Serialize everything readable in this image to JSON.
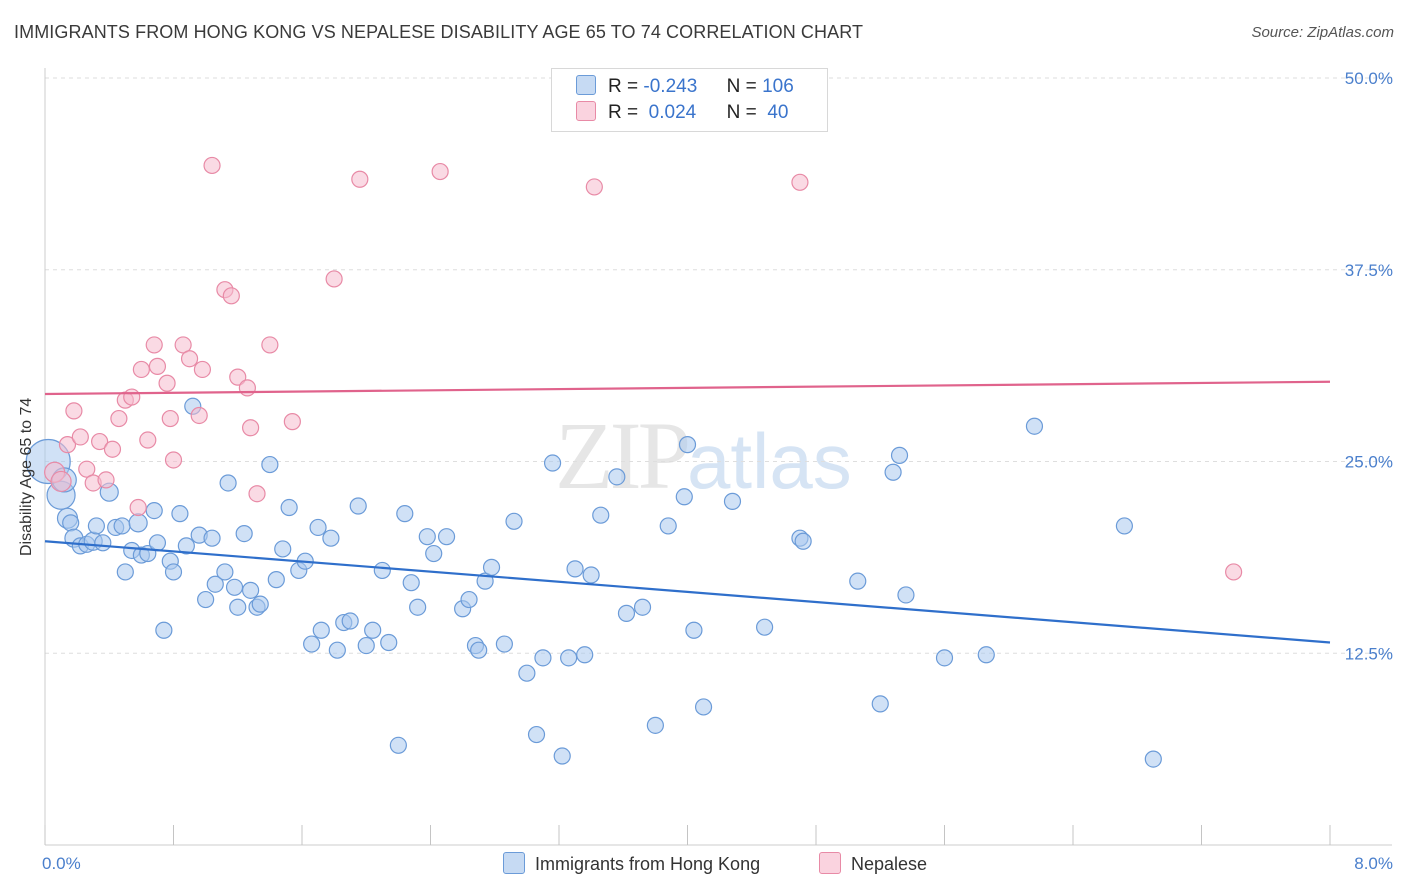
{
  "title": "IMMIGRANTS FROM HONG KONG VS NEPALESE DISABILITY AGE 65 TO 74 CORRELATION CHART",
  "source": "Source: ZipAtlas.com",
  "watermark": {
    "zip": "ZIP",
    "atlas": "atlas"
  },
  "legend": {
    "rows": [
      {
        "r_label": "R =",
        "r_value": "-0.243",
        "n_label": "N =",
        "n_value": "106"
      },
      {
        "r_label": "R =",
        "r_value": "0.024",
        "n_label": "N =",
        "n_value": "40"
      }
    ]
  },
  "colors": {
    "blue_fill": "#a9c8ee",
    "blue_stroke": "#6b9bd8",
    "blue_line": "#2f6fcb",
    "pink_fill": "#f6bccd",
    "pink_stroke": "#e88aa6",
    "pink_line": "#e0638c",
    "tick_text": "#4a7fcc",
    "grid": "#dedede"
  },
  "chart_data": {
    "type": "scatter",
    "title": "IMMIGRANTS FROM HONG KONG VS NEPALESE DISABILITY AGE 65 TO 74 CORRELATION CHART",
    "xlabel": "",
    "ylabel": "Disability Age 65 to 74",
    "xlim": [
      0,
      8
    ],
    "ylim": [
      0,
      50
    ],
    "x_tick_labels": [
      "0.0%",
      "8.0%"
    ],
    "y_ticks": [
      12.5,
      25.0,
      37.5,
      50.0
    ],
    "y_tick_labels": [
      "12.5%",
      "25.0%",
      "37.5%",
      "50.0%"
    ],
    "grid": true,
    "legend_placement": "bottom",
    "series": [
      {
        "name": "Immigrants from Hong Kong",
        "r": -0.243,
        "n": 106,
        "trend": {
          "x": [
            0,
            8
          ],
          "y": [
            19.8,
            13.2
          ]
        },
        "points": [
          [
            0.02,
            25.0,
            22
          ],
          [
            0.1,
            22.8,
            14
          ],
          [
            0.12,
            23.8,
            12
          ],
          [
            0.14,
            21.3,
            10
          ],
          [
            0.16,
            21.0,
            8
          ],
          [
            0.18,
            20.0,
            9
          ],
          [
            0.22,
            19.5,
            8
          ],
          [
            0.26,
            19.6,
            8
          ],
          [
            0.3,
            19.8,
            9
          ],
          [
            0.32,
            20.8,
            8
          ],
          [
            0.36,
            19.7,
            8
          ],
          [
            0.4,
            23.0,
            9
          ],
          [
            0.44,
            20.7,
            8
          ],
          [
            0.48,
            20.8,
            8
          ],
          [
            0.5,
            17.8,
            8
          ],
          [
            0.54,
            19.2,
            8
          ],
          [
            0.58,
            21.0,
            9
          ],
          [
            0.6,
            18.9,
            8
          ],
          [
            0.64,
            19.0,
            8
          ],
          [
            0.68,
            21.8,
            8
          ],
          [
            0.7,
            19.7,
            8
          ],
          [
            0.74,
            14.0,
            8
          ],
          [
            0.78,
            18.5,
            8
          ],
          [
            0.8,
            17.8,
            8
          ],
          [
            0.84,
            21.6,
            8
          ],
          [
            0.88,
            19.5,
            8
          ],
          [
            0.92,
            28.6,
            8
          ],
          [
            0.96,
            20.2,
            8
          ],
          [
            1.0,
            16.0,
            8
          ],
          [
            1.04,
            20.0,
            8
          ],
          [
            1.06,
            17.0,
            8
          ],
          [
            1.12,
            17.8,
            8
          ],
          [
            1.14,
            23.6,
            8
          ],
          [
            1.18,
            16.8,
            8
          ],
          [
            1.2,
            15.5,
            8
          ],
          [
            1.24,
            20.3,
            8
          ],
          [
            1.28,
            16.6,
            8
          ],
          [
            1.32,
            15.5,
            8
          ],
          [
            1.34,
            15.7,
            8
          ],
          [
            1.4,
            24.8,
            8
          ],
          [
            1.44,
            17.3,
            8
          ],
          [
            1.48,
            19.3,
            8
          ],
          [
            1.52,
            22.0,
            8
          ],
          [
            1.58,
            17.9,
            8
          ],
          [
            1.62,
            18.5,
            8
          ],
          [
            1.66,
            13.1,
            8
          ],
          [
            1.7,
            20.7,
            8
          ],
          [
            1.72,
            14.0,
            8
          ],
          [
            1.78,
            20.0,
            8
          ],
          [
            1.82,
            12.7,
            8
          ],
          [
            1.86,
            14.5,
            8
          ],
          [
            1.9,
            14.6,
            8
          ],
          [
            1.95,
            22.1,
            8
          ],
          [
            2.0,
            13.0,
            8
          ],
          [
            2.04,
            14.0,
            8
          ],
          [
            2.1,
            17.9,
            8
          ],
          [
            2.14,
            13.2,
            8
          ],
          [
            2.2,
            6.5,
            8
          ],
          [
            2.24,
            21.6,
            8
          ],
          [
            2.28,
            17.1,
            8
          ],
          [
            2.32,
            15.5,
            8
          ],
          [
            2.38,
            20.1,
            8
          ],
          [
            2.42,
            19.0,
            8
          ],
          [
            2.5,
            20.1,
            8
          ],
          [
            2.6,
            15.4,
            8
          ],
          [
            2.64,
            16.0,
            8
          ],
          [
            2.68,
            13.0,
            8
          ],
          [
            2.7,
            12.7,
            8
          ],
          [
            2.74,
            17.2,
            8
          ],
          [
            2.78,
            18.1,
            8
          ],
          [
            2.86,
            13.1,
            8
          ],
          [
            2.92,
            21.1,
            8
          ],
          [
            3.0,
            11.2,
            8
          ],
          [
            3.06,
            7.2,
            8
          ],
          [
            3.1,
            12.2,
            8
          ],
          [
            3.16,
            24.9,
            8
          ],
          [
            3.22,
            5.8,
            8
          ],
          [
            3.26,
            12.2,
            8
          ],
          [
            3.3,
            18.0,
            8
          ],
          [
            3.36,
            12.4,
            8
          ],
          [
            3.4,
            17.6,
            8
          ],
          [
            3.46,
            21.5,
            8
          ],
          [
            3.56,
            24.0,
            8
          ],
          [
            3.62,
            15.1,
            8
          ],
          [
            3.72,
            15.5,
            8
          ],
          [
            3.8,
            7.8,
            8
          ],
          [
            3.88,
            20.8,
            8
          ],
          [
            3.98,
            22.7,
            8
          ],
          [
            4.0,
            26.1,
            8
          ],
          [
            4.04,
            14.0,
            8
          ],
          [
            4.1,
            9.0,
            8
          ],
          [
            4.28,
            22.4,
            8
          ],
          [
            4.48,
            14.2,
            8
          ],
          [
            4.7,
            20.0,
            8
          ],
          [
            4.72,
            19.8,
            8
          ],
          [
            5.06,
            17.2,
            8
          ],
          [
            5.2,
            9.2,
            8
          ],
          [
            5.28,
            24.3,
            8
          ],
          [
            5.32,
            25.4,
            8
          ],
          [
            5.36,
            16.3,
            8
          ],
          [
            5.6,
            12.2,
            8
          ],
          [
            5.86,
            12.4,
            8
          ],
          [
            6.16,
            27.3,
            8
          ],
          [
            6.72,
            20.8,
            8
          ],
          [
            6.9,
            5.6,
            8
          ]
        ]
      },
      {
        "name": "Nepalese",
        "r": 0.024,
        "n": 40,
        "trend": {
          "x": [
            0,
            8
          ],
          "y": [
            29.4,
            30.2
          ]
        },
        "points": [
          [
            0.06,
            24.3,
            10
          ],
          [
            0.1,
            23.7,
            10
          ],
          [
            0.14,
            26.1,
            8
          ],
          [
            0.18,
            28.3,
            8
          ],
          [
            0.22,
            26.6,
            8
          ],
          [
            0.26,
            24.5,
            8
          ],
          [
            0.3,
            23.6,
            8
          ],
          [
            0.34,
            26.3,
            8
          ],
          [
            0.38,
            23.8,
            8
          ],
          [
            0.42,
            25.8,
            8
          ],
          [
            0.46,
            27.8,
            8
          ],
          [
            0.5,
            29.0,
            8
          ],
          [
            0.54,
            29.2,
            8
          ],
          [
            0.58,
            22.0,
            8
          ],
          [
            0.6,
            31.0,
            8
          ],
          [
            0.64,
            26.4,
            8
          ],
          [
            0.68,
            32.6,
            8
          ],
          [
            0.7,
            31.2,
            8
          ],
          [
            0.76,
            30.1,
            8
          ],
          [
            0.78,
            27.8,
            8
          ],
          [
            0.8,
            25.1,
            8
          ],
          [
            0.86,
            32.6,
            8
          ],
          [
            0.9,
            31.7,
            8
          ],
          [
            0.96,
            28.0,
            8
          ],
          [
            0.98,
            31.0,
            8
          ],
          [
            1.04,
            44.3,
            8
          ],
          [
            1.12,
            36.2,
            8
          ],
          [
            1.16,
            35.8,
            8
          ],
          [
            1.2,
            30.5,
            8
          ],
          [
            1.26,
            29.8,
            8
          ],
          [
            1.28,
            27.2,
            8
          ],
          [
            1.32,
            22.9,
            8
          ],
          [
            1.4,
            32.6,
            8
          ],
          [
            1.54,
            27.6,
            8
          ],
          [
            1.8,
            36.9,
            8
          ],
          [
            1.96,
            43.4,
            8
          ],
          [
            2.46,
            43.9,
            8
          ],
          [
            3.42,
            42.9,
            8
          ],
          [
            4.7,
            43.2,
            8
          ],
          [
            7.4,
            17.8,
            8
          ]
        ]
      }
    ]
  },
  "bottom_legend": [
    "Immigrants from Hong Kong",
    "Nepalese"
  ]
}
